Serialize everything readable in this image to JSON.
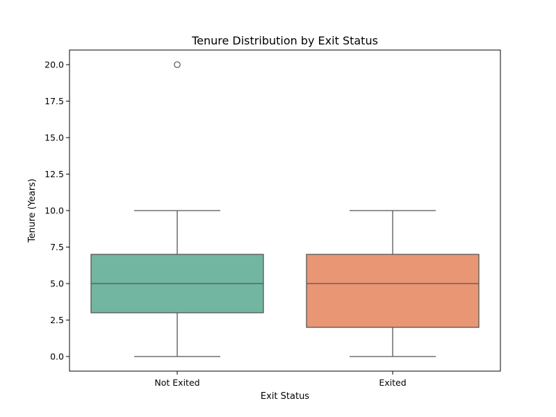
{
  "chart_data": {
    "type": "box",
    "title": "Tenure Distribution by Exit Status",
    "xlabel": "Exit Status",
    "ylabel": "Tenure (Years)",
    "ylim": [
      -1,
      21
    ],
    "yticks": [
      "0.0",
      "2.5",
      "5.0",
      "7.5",
      "10.0",
      "12.5",
      "15.0",
      "17.5",
      "20.0"
    ],
    "ytick_values": [
      0,
      2.5,
      5,
      7.5,
      10,
      12.5,
      15,
      17.5,
      20
    ],
    "grid": false,
    "legend": "none",
    "categories": [
      "Not Exited",
      "Exited"
    ],
    "boxes": [
      {
        "category": "Not Exited",
        "whisker_low": 0,
        "q1": 3,
        "median": 5,
        "q3": 7,
        "whisker_high": 10,
        "outliers": [
          20
        ],
        "color": "#72b6a1"
      },
      {
        "category": "Exited",
        "whisker_low": 0,
        "q1": 2,
        "median": 5,
        "q3": 7,
        "whisker_high": 10,
        "outliers": [],
        "color": "#e99675"
      }
    ],
    "line_color": "#555555"
  }
}
